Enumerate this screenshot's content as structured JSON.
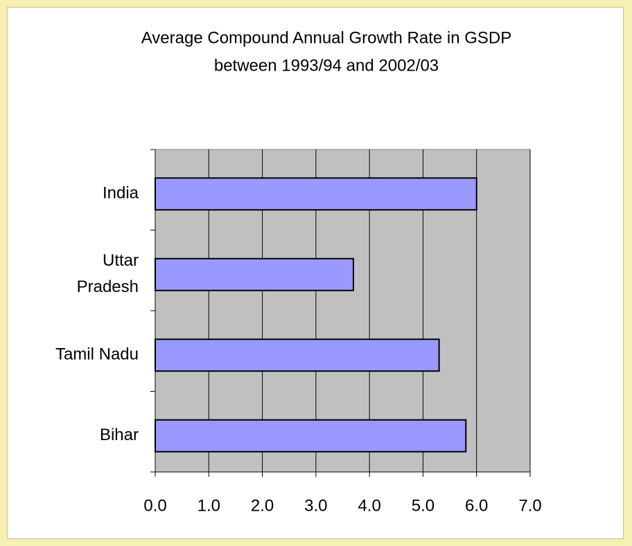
{
  "chart_data": {
    "type": "barh",
    "title": [
      "Average Compound Annual Growth Rate in GSDP",
      "between 1993/94 and 2002/03"
    ],
    "categories": [
      "India",
      "Uttar Pradesh",
      "Tamil Nadu",
      "Bihar"
    ],
    "values": [
      6.0,
      3.7,
      5.3,
      5.8
    ],
    "color": "#9999ff",
    "xlim": [
      0,
      7
    ],
    "xticks": [
      {
        "value": 0,
        "label": "0.0"
      },
      {
        "value": 1,
        "label": "1.0"
      },
      {
        "value": 2,
        "label": "2.0"
      },
      {
        "value": 3,
        "label": "3.0"
      },
      {
        "value": 4,
        "label": "4.0"
      },
      {
        "value": 5,
        "label": "5.0"
      },
      {
        "value": 6,
        "label": "6.0"
      },
      {
        "value": 7,
        "label": "7.0"
      }
    ],
    "grid": true
  }
}
